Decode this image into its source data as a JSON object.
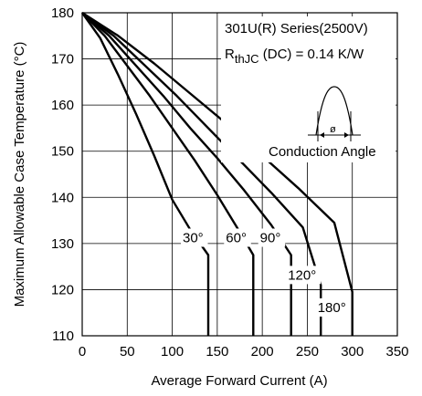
{
  "chart_data": {
    "type": "line",
    "title": "",
    "xlabel": "Average Forward Current (A)",
    "ylabel": "Maximum Allowable Case Temperature (°C)",
    "xlim": [
      0,
      350
    ],
    "ylim": [
      110,
      180
    ],
    "x_ticks": [
      0,
      50,
      100,
      150,
      200,
      250,
      300,
      350
    ],
    "y_ticks": [
      110,
      120,
      130,
      140,
      150,
      160,
      170,
      180
    ],
    "grid": true,
    "annotations": {
      "series_title": "301U(R) Series(2500V)",
      "rth_main": "R",
      "rth_sub": "thJC",
      "rth_rest": " (DC) = 0.14 K/W",
      "inset_label": "Conduction Angle",
      "inset_symbol": "ø"
    },
    "series": [
      {
        "name": "30°",
        "x": [
          0,
          20,
          40,
          60,
          80,
          100,
          120,
          140,
          140
        ],
        "y": [
          180,
          174.5,
          166.5,
          158,
          149,
          139.5,
          133,
          127.5,
          110
        ]
      },
      {
        "name": "60°",
        "x": [
          0,
          25,
          50,
          75,
          100,
          125,
          150,
          175,
          190,
          190
        ],
        "y": [
          180,
          175,
          168.5,
          162,
          155,
          148,
          140.5,
          132.5,
          127.5,
          110
        ]
      },
      {
        "name": "90°",
        "x": [
          0,
          30,
          60,
          90,
          120,
          150,
          180,
          210,
          232,
          232
        ],
        "y": [
          180,
          175,
          168.5,
          162,
          155,
          148.5,
          141.5,
          134,
          127.5,
          110
        ]
      },
      {
        "name": "120°",
        "x": [
          0,
          35,
          70,
          105,
          140,
          175,
          210,
          245,
          265,
          265
        ],
        "y": [
          180,
          175,
          168.5,
          162,
          155,
          148,
          141,
          133.5,
          121,
          110
        ]
      },
      {
        "name": "180°",
        "x": [
          0,
          40,
          80,
          120,
          160,
          200,
          240,
          280,
          300,
          300
        ],
        "y": [
          180,
          175,
          169,
          162.5,
          156,
          149,
          142,
          134.5,
          119.5,
          110
        ]
      }
    ]
  }
}
